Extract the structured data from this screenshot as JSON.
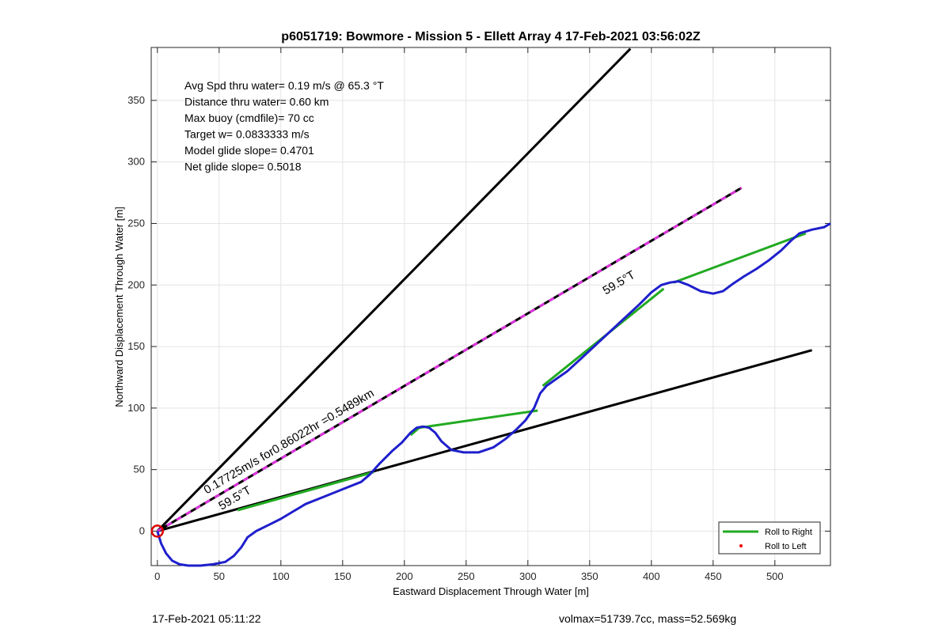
{
  "chart_data": {
    "type": "line",
    "title": "p6051719: Bowmore - Mission 5 - Ellett Array 4 17-Feb-2021 03:56:02Z",
    "xlabel": "Eastward Displacement Through Water [m]",
    "ylabel": "Northward Displacement Through Water [m]",
    "xlim": [
      -5,
      545
    ],
    "ylim": [
      -28,
      393
    ],
    "xticks": [
      0,
      50,
      100,
      150,
      200,
      250,
      300,
      350,
      400,
      450,
      500
    ],
    "yticks": [
      0,
      50,
      100,
      150,
      200,
      250,
      300,
      350
    ],
    "grid": true,
    "legend": {
      "placement": "bottom-right",
      "entries": [
        {
          "label": "Roll to Right",
          "color": "#22aa22",
          "style": "line"
        },
        {
          "label": "Roll to Left",
          "color": "#ee0000",
          "style": "dot"
        }
      ]
    },
    "stats_text": [
      "Avg Spd thru water=  0.19 m/s @  65.3 °T",
      "Distance thru water=  0.60 km",
      "Max buoy (cmdfile)= 70 cc",
      "Target w= 0.0833333 m/s",
      "Model glide slope= 0.4701",
      "Net glide slope= 0.5018"
    ],
    "annotations": [
      {
        "text": "0.17725m/s for0.86022hr =0.5489km",
        "x": 40,
        "y": 30,
        "angle_deg": 30.5
      },
      {
        "text": "59.5°T",
        "x": 52,
        "y": 17,
        "angle_deg": 30.5
      },
      {
        "text": "59.5°T",
        "x": 363,
        "y": 192,
        "angle_deg": 30.5
      }
    ],
    "series": [
      {
        "role": "upper-heading-line",
        "color": "#000000",
        "x": [
          0,
          383
        ],
        "y": [
          0,
          392
        ]
      },
      {
        "role": "lower-heading-line",
        "color": "#000000",
        "x": [
          0,
          530
        ],
        "y": [
          0,
          147
        ]
      },
      {
        "role": "net-displacement-line",
        "color": "#000000",
        "dash_color": "#dd33dd",
        "x": [
          0,
          473
        ],
        "y": [
          0,
          279
        ]
      },
      {
        "role": "segment-line",
        "color": "#22aa22",
        "x": [
          65,
          175,
          205,
          212,
          308,
          312,
          410,
          418,
          525
        ],
        "y": [
          17,
          48,
          78,
          84,
          98,
          118,
          197,
          202,
          242
        ]
      },
      {
        "role": "track",
        "color": "#1f1fcc",
        "x": [
          0,
          3,
          7,
          12,
          18,
          25,
          35,
          45,
          55,
          62,
          68,
          73,
          80,
          90,
          100,
          110,
          120,
          135,
          150,
          165,
          172,
          180,
          190,
          198,
          205,
          210,
          215,
          220,
          225,
          230,
          238,
          248,
          260,
          272,
          282,
          290,
          298,
          305,
          310,
          315,
          322,
          332,
          345,
          360,
          375,
          390,
          400,
          408,
          415,
          422,
          430,
          440,
          450,
          458,
          466,
          475,
          485,
          495,
          505,
          513,
          520,
          530,
          540,
          545
        ],
        "y": [
          0,
          -10,
          -18,
          -24,
          -27,
          -28,
          -28,
          -27,
          -25,
          -20,
          -13,
          -5,
          0,
          5,
          10,
          16,
          22,
          28,
          34,
          40,
          46,
          55,
          65,
          72,
          80,
          84,
          85,
          84,
          80,
          73,
          66,
          64,
          64,
          68,
          75,
          82,
          90,
          100,
          112,
          118,
          123,
          130,
          142,
          156,
          170,
          184,
          194,
          200,
          202,
          203,
          200,
          195,
          193,
          195,
          201,
          207,
          213,
          220,
          228,
          236,
          242,
          245,
          247,
          250
        ]
      }
    ],
    "start_marker": {
      "x": 0,
      "y": 0,
      "color": "#dd0000"
    }
  },
  "footer": {
    "left": "17-Feb-2021 05:11:22",
    "right": "volmax=51739.7cc, mass=52.569kg"
  }
}
